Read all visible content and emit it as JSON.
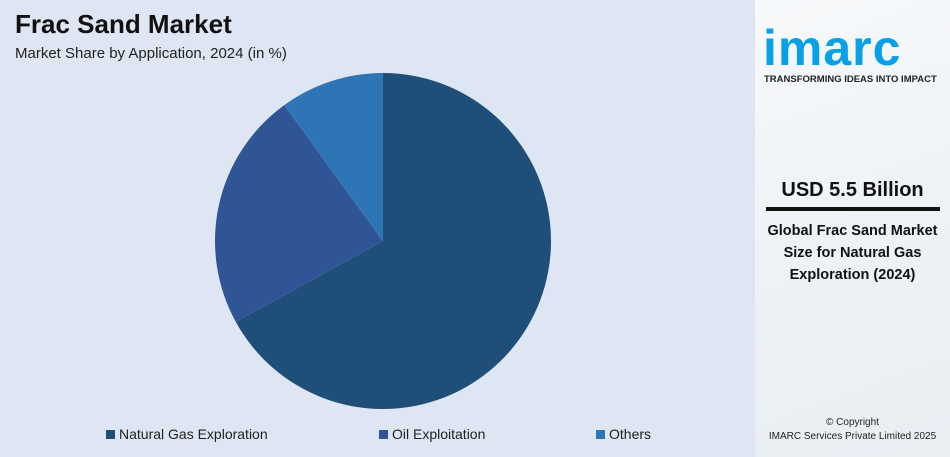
{
  "header": {
    "title": "Frac Sand Market",
    "subtitle": "Market Share by Application, 2024 (in %)"
  },
  "chart_data": {
    "type": "pie",
    "categories": [
      "Natural Gas Exploration",
      "Oil Exploitation",
      "Others"
    ],
    "values": [
      67,
      23,
      10
    ],
    "colors": [
      "#1f4e79",
      "#2f5597",
      "#2e75b6"
    ],
    "legend_position": "bottom"
  },
  "sidebar": {
    "logo": "imarc",
    "tagline": "TRANSFORMING IDEAS INTO IMPACT",
    "value": "USD 5.5 Billion",
    "description": "Global Frac Sand Market Size for Natural Gas Exploration (2024)",
    "copyright_line1": "© Copyright",
    "copyright_line2": "IMARC Services Private Limited 2025"
  }
}
